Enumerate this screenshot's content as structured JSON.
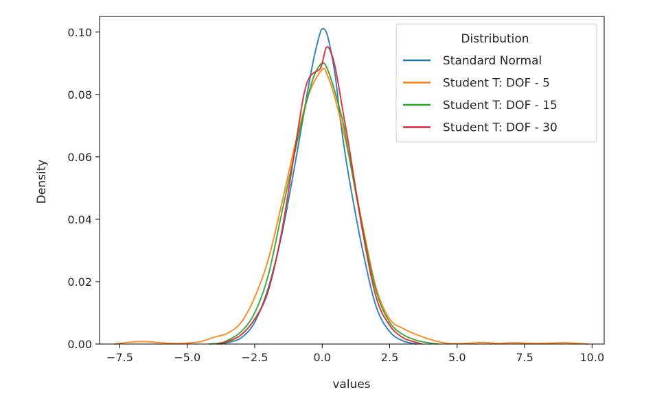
{
  "chart_data": {
    "type": "line",
    "xlabel": "values",
    "ylabel": "Density",
    "xlim": [
      -8.25,
      10.45
    ],
    "ylim": [
      0,
      0.105
    ],
    "x_ticks": [
      -7.5,
      -5.0,
      -2.5,
      0.0,
      2.5,
      5.0,
      7.5,
      10.0
    ],
    "x_tick_labels": [
      "−7.5",
      "−5.0",
      "−2.5",
      "0.0",
      "2.5",
      "5.0",
      "7.5",
      "10.0"
    ],
    "y_ticks": [
      0.0,
      0.02,
      0.04,
      0.06,
      0.08,
      0.1
    ],
    "y_tick_labels": [
      "0.00",
      "0.02",
      "0.04",
      "0.06",
      "0.08",
      "0.10"
    ],
    "grid": false,
    "legend": {
      "title": "Distribution",
      "placement": "top-right"
    },
    "series": [
      {
        "name": "Standard Normal",
        "color": "#1f77b4",
        "points": [
          [
            -3.8,
            0.0
          ],
          [
            -3.5,
            0.0005
          ],
          [
            -3.0,
            0.002
          ],
          [
            -2.5,
            0.007
          ],
          [
            -2.0,
            0.018
          ],
          [
            -1.5,
            0.035
          ],
          [
            -1.0,
            0.058
          ],
          [
            -0.7,
            0.073
          ],
          [
            -0.5,
            0.083
          ],
          [
            -0.3,
            0.092
          ],
          [
            -0.1,
            0.099
          ],
          [
            0.0,
            0.101
          ],
          [
            0.15,
            0.1
          ],
          [
            0.3,
            0.095
          ],
          [
            0.5,
            0.085
          ],
          [
            0.7,
            0.07
          ],
          [
            1.0,
            0.053
          ],
          [
            1.5,
            0.03
          ],
          [
            2.0,
            0.012
          ],
          [
            2.5,
            0.004
          ],
          [
            3.0,
            0.001
          ],
          [
            3.5,
            0.0
          ]
        ]
      },
      {
        "name": "Student T: DOF - 5",
        "color": "#ff7f0e",
        "points": [
          [
            -7.7,
            0.0
          ],
          [
            -7.0,
            0.0007
          ],
          [
            -6.5,
            0.0008
          ],
          [
            -6.0,
            0.0004
          ],
          [
            -5.5,
            0.0002
          ],
          [
            -5.0,
            0.0003
          ],
          [
            -4.5,
            0.0008
          ],
          [
            -4.0,
            0.0022
          ],
          [
            -3.5,
            0.0035
          ],
          [
            -3.0,
            0.007
          ],
          [
            -2.5,
            0.015
          ],
          [
            -2.0,
            0.027
          ],
          [
            -1.5,
            0.045
          ],
          [
            -1.0,
            0.064
          ],
          [
            -0.5,
            0.08
          ],
          [
            0.0,
            0.088
          ],
          [
            0.2,
            0.086
          ],
          [
            0.5,
            0.078
          ],
          [
            1.0,
            0.06
          ],
          [
            1.5,
            0.038
          ],
          [
            2.0,
            0.018
          ],
          [
            2.5,
            0.008
          ],
          [
            3.0,
            0.005
          ],
          [
            3.5,
            0.003
          ],
          [
            4.0,
            0.0015
          ],
          [
            4.5,
            0.0004
          ],
          [
            5.0,
            0.0001
          ],
          [
            5.5,
            0.0003
          ],
          [
            6.0,
            0.0005
          ],
          [
            6.5,
            0.0002
          ],
          [
            7.0,
            0.0004
          ],
          [
            7.5,
            0.0003
          ],
          [
            8.0,
            0.0002
          ],
          [
            8.5,
            0.0003
          ],
          [
            9.0,
            0.0004
          ],
          [
            9.5,
            0.0002
          ],
          [
            9.85,
            0.0
          ]
        ]
      },
      {
        "name": "Student T: DOF - 15",
        "color": "#2ca02c",
        "points": [
          [
            -4.2,
            0.0
          ],
          [
            -3.8,
            0.0003
          ],
          [
            -3.5,
            0.0012
          ],
          [
            -3.0,
            0.004
          ],
          [
            -2.5,
            0.01
          ],
          [
            -2.0,
            0.022
          ],
          [
            -1.5,
            0.042
          ],
          [
            -1.0,
            0.062
          ],
          [
            -0.6,
            0.077
          ],
          [
            -0.3,
            0.086
          ],
          [
            0.0,
            0.09
          ],
          [
            0.2,
            0.088
          ],
          [
            0.5,
            0.08
          ],
          [
            0.8,
            0.07
          ],
          [
            1.0,
            0.06
          ],
          [
            1.5,
            0.037
          ],
          [
            2.0,
            0.017
          ],
          [
            2.5,
            0.007
          ],
          [
            3.0,
            0.003
          ],
          [
            3.5,
            0.0012
          ],
          [
            4.0,
            0.0003
          ],
          [
            4.3,
            0.0
          ]
        ]
      },
      {
        "name": "Student T: DOF - 30",
        "color": "#d62728",
        "points": [
          [
            -3.9,
            0.0
          ],
          [
            -3.5,
            0.0008
          ],
          [
            -3.0,
            0.003
          ],
          [
            -2.5,
            0.008
          ],
          [
            -2.0,
            0.017
          ],
          [
            -1.5,
            0.036
          ],
          [
            -1.0,
            0.063
          ],
          [
            -0.7,
            0.079
          ],
          [
            -0.5,
            0.085
          ],
          [
            -0.3,
            0.087
          ],
          [
            -0.1,
            0.088
          ],
          [
            0.0,
            0.09
          ],
          [
            0.15,
            0.095
          ],
          [
            0.3,
            0.094
          ],
          [
            0.5,
            0.088
          ],
          [
            0.8,
            0.073
          ],
          [
            1.0,
            0.063
          ],
          [
            1.5,
            0.036
          ],
          [
            2.0,
            0.015
          ],
          [
            2.5,
            0.006
          ],
          [
            3.0,
            0.002
          ],
          [
            3.5,
            0.0005
          ],
          [
            3.7,
            0.0
          ]
        ]
      }
    ]
  }
}
